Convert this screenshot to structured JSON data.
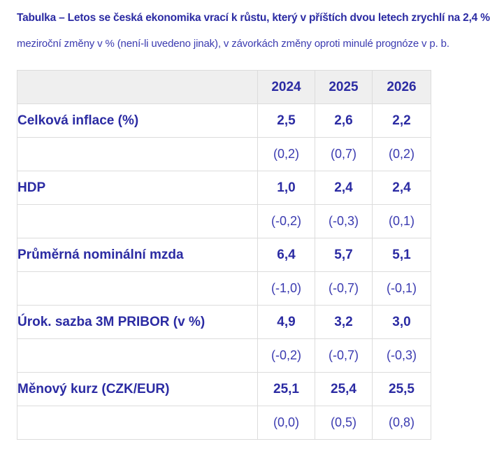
{
  "caption": "Tabulka – Letos se česká ekonomika vrací k růstu, který v příštích dvou letech zrychlí na 2,4 %",
  "subcaption": "meziroční změny v % (není-li uvedeno jinak), v závorkách změny oproti minulé prognóze v p. b.",
  "table": {
    "years": [
      "2024",
      "2025",
      "2026"
    ],
    "rows": [
      {
        "label": "Celková inflace (%)",
        "values": [
          "2,5",
          "2,6",
          "2,2"
        ],
        "changes": [
          "(0,2)",
          "(0,7)",
          "(0,2)"
        ]
      },
      {
        "label": "HDP",
        "values": [
          "1,0",
          "2,4",
          "2,4"
        ],
        "changes": [
          "(-0,2)",
          "(-0,3)",
          "(0,1)"
        ]
      },
      {
        "label": "Průměrná nominální mzda",
        "values": [
          "6,4",
          "5,7",
          "5,1"
        ],
        "changes": [
          "(-1,0)",
          "(-0,7)",
          "(-0,1)"
        ]
      },
      {
        "label": "Úrok. sazba 3M PRIBOR (v %)",
        "values": [
          "4,9",
          "3,2",
          "3,0"
        ],
        "changes": [
          "(-0,2)",
          "(-0,7)",
          "(-0,3)"
        ]
      },
      {
        "label": "Měnový kurz (CZK/EUR)",
        "values": [
          "25,1",
          "25,4",
          "25,5"
        ],
        "changes": [
          "(0,0)",
          "(0,5)",
          "(0,8)"
        ]
      }
    ]
  },
  "colors": {
    "text": "#2b2ba3",
    "header_bg": "#efefef",
    "border": "#dcdcdc"
  }
}
